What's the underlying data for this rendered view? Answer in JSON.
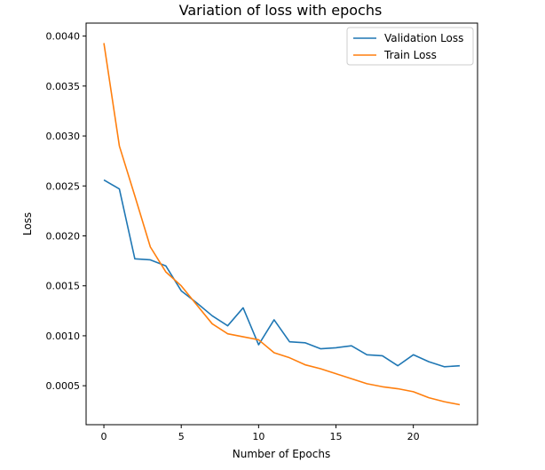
{
  "chart_data": {
    "type": "line",
    "title": "Variation of loss with epochs",
    "xlabel": "Number of Epochs",
    "ylabel": "Loss",
    "xlim": [
      -1.15,
      24.15
    ],
    "ylim": [
      0.00011,
      0.00413
    ],
    "xticks": [
      0,
      5,
      10,
      15,
      20
    ],
    "xtick_labels": [
      "0",
      "5",
      "10",
      "15",
      "20"
    ],
    "yticks": [
      0.0005,
      0.001,
      0.0015,
      0.002,
      0.0025,
      0.003,
      0.0035,
      0.004
    ],
    "ytick_labels": [
      "0.0005",
      "0.0010",
      "0.0015",
      "0.0020",
      "0.0025",
      "0.0030",
      "0.0035",
      "0.0040"
    ],
    "grid": false,
    "legend_position": "top-right",
    "x": [
      0,
      1,
      2,
      3,
      4,
      5,
      6,
      7,
      8,
      9,
      10,
      11,
      12,
      13,
      14,
      15,
      16,
      17,
      18,
      19,
      20,
      21,
      22,
      23
    ],
    "series": [
      {
        "name": "Validation Loss",
        "color": "#1f77b4",
        "values": [
          0.00256,
          0.00247,
          0.00177,
          0.00176,
          0.0017,
          0.00145,
          0.00133,
          0.0012,
          0.0011,
          0.00128,
          0.00091,
          0.00116,
          0.00094,
          0.00093,
          0.00087,
          0.00088,
          0.0009,
          0.00081,
          0.0008,
          0.0007,
          0.00081,
          0.00074,
          0.00069,
          0.0007
        ]
      },
      {
        "name": "Train Loss",
        "color": "#ff7f0e",
        "values": [
          0.00393,
          0.0029,
          0.0024,
          0.00189,
          0.00164,
          0.0015,
          0.00131,
          0.00112,
          0.00102,
          0.00099,
          0.00096,
          0.00083,
          0.00078,
          0.00071,
          0.00067,
          0.00062,
          0.00057,
          0.00052,
          0.00049,
          0.00047,
          0.00044,
          0.00038,
          0.00034,
          0.00031
        ]
      }
    ]
  }
}
